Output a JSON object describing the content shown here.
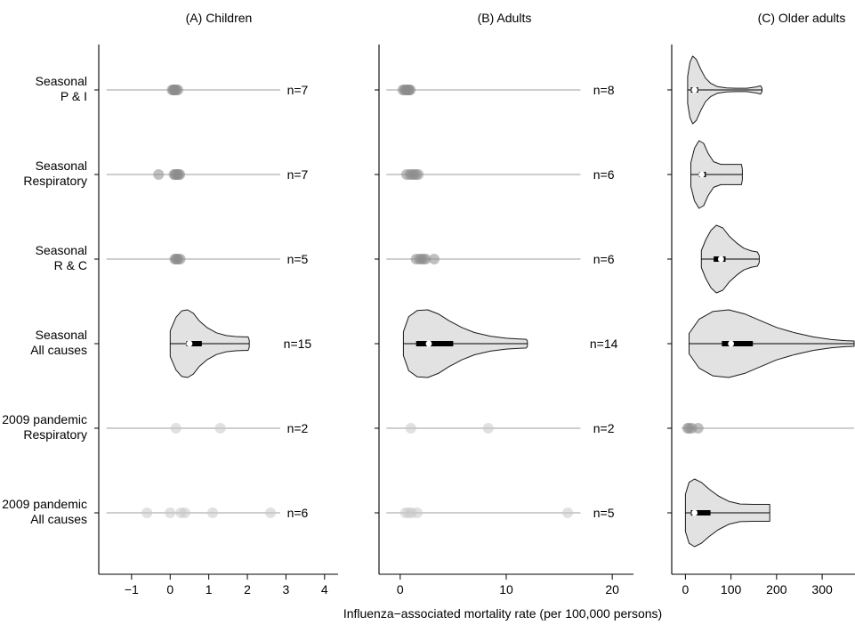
{
  "chart_data": {
    "type": "violin",
    "xlabel": "Influenza−associated mortality rate (per 100,000 persons)",
    "rows": [
      {
        "key": "sp",
        "label": [
          "Seasonal",
          "P & I"
        ]
      },
      {
        "key": "sr",
        "label": [
          "Seasonal",
          "Respiratory"
        ]
      },
      {
        "key": "src",
        "label": [
          "Seasonal",
          "R & C"
        ]
      },
      {
        "key": "sa",
        "label": [
          "Seasonal",
          "All causes"
        ]
      },
      {
        "key": "pr",
        "label": [
          "2009 pandemic",
          "Respiratory"
        ]
      },
      {
        "key": "pa",
        "label": [
          "2009 pandemic",
          "All causes"
        ]
      }
    ],
    "panels": [
      {
        "title": "(A) Children",
        "xlim": [
          -1.85,
          4.35
        ],
        "ticks": [
          -1,
          0,
          1,
          2,
          3,
          4
        ],
        "tick_labels": [
          "−1",
          "0",
          "1",
          "2",
          "3",
          "4"
        ],
        "line_range": [
          -1.65,
          2.85
        ],
        "n_pos": 3.3,
        "rows": [
          {
            "kind": "points",
            "n": "n=7",
            "points": [
              0.05,
              0.08,
              0.1,
              0.12,
              0.14,
              0.16,
              0.2
            ],
            "shade": "dark"
          },
          {
            "kind": "points",
            "n": "n=7",
            "points": [
              -0.3,
              0.1,
              0.13,
              0.16,
              0.19,
              0.22,
              0.25
            ],
            "shade": "dark"
          },
          {
            "kind": "points",
            "n": "n=5",
            "points": [
              0.12,
              0.15,
              0.18,
              0.21,
              0.26
            ],
            "shade": "dark"
          },
          {
            "kind": "violin",
            "n": "n=15",
            "min": 0,
            "max": 2.05,
            "q1": 0.42,
            "q3": 0.82,
            "median": 0.5,
            "profile": [
              [
                0,
                0
              ],
              [
                0,
                0.38
              ],
              [
                0.15,
                0.78
              ],
              [
                0.3,
                0.97
              ],
              [
                0.45,
                1.0
              ],
              [
                0.6,
                0.9
              ],
              [
                0.75,
                0.68
              ],
              [
                0.95,
                0.48
              ],
              [
                1.2,
                0.32
              ],
              [
                1.45,
                0.24
              ],
              [
                1.7,
                0.21
              ],
              [
                1.9,
                0.2
              ],
              [
                2.02,
                0.2
              ],
              [
                2.05,
                0.1
              ],
              [
                2.05,
                0
              ]
            ]
          },
          {
            "kind": "points",
            "n": "n=2",
            "points": [
              0.15,
              1.3
            ],
            "shade": "light"
          },
          {
            "kind": "points",
            "n": "n=6",
            "points": [
              -0.6,
              0.0,
              0.28,
              0.38,
              1.1,
              2.6
            ],
            "shade": "light"
          }
        ]
      },
      {
        "title": "(B) Adults",
        "xlim": [
          -2.0,
          22.0
        ],
        "ticks": [
          0,
          10,
          20
        ],
        "tick_labels": [
          "0",
          "10",
          "20"
        ],
        "line_range": [
          -1.3,
          17.0
        ],
        "n_pos": 19.2,
        "rows": [
          {
            "kind": "points",
            "n": "n=8",
            "points": [
              0.25,
              0.4,
              0.5,
              0.6,
              0.7,
              0.8,
              0.85,
              0.95
            ],
            "shade": "dark"
          },
          {
            "kind": "points",
            "n": "n=6",
            "points": [
              0.6,
              0.9,
              1.1,
              1.3,
              1.5,
              1.7
            ],
            "shade": "dark"
          },
          {
            "kind": "points",
            "n": "n=6",
            "points": [
              1.5,
              1.8,
              2.0,
              2.2,
              2.4,
              3.2
            ],
            "shade": "dark"
          },
          {
            "kind": "violin",
            "n": "n=14",
            "min": 0.3,
            "max": 12.0,
            "q1": 1.5,
            "q3": 5.0,
            "median": 2.7,
            "profile": [
              [
                0.3,
                0
              ],
              [
                0.3,
                0.35
              ],
              [
                0.8,
                0.8
              ],
              [
                1.6,
                0.98
              ],
              [
                2.6,
                1.0
              ],
              [
                3.6,
                0.88
              ],
              [
                4.6,
                0.68
              ],
              [
                5.8,
                0.48
              ],
              [
                7.0,
                0.33
              ],
              [
                8.5,
                0.22
              ],
              [
                10.0,
                0.16
              ],
              [
                11.2,
                0.14
              ],
              [
                11.9,
                0.13
              ],
              [
                12.0,
                0.07
              ],
              [
                12.0,
                0
              ]
            ]
          },
          {
            "kind": "points",
            "n": "n=2",
            "points": [
              1.0,
              8.3
            ],
            "shade": "light"
          },
          {
            "kind": "points",
            "n": "n=5",
            "points": [
              0.5,
              0.8,
              1.1,
              1.6,
              15.8
            ],
            "shade": "light"
          }
        ]
      },
      {
        "title": "(C) Older adults",
        "xlim": [
          -30,
          372
        ],
        "ticks": [
          0,
          100,
          200,
          300
        ],
        "tick_labels": [
          "0",
          "100",
          "200",
          "300"
        ],
        "line_range": [
          -8,
          372
        ],
        "n_pos": null,
        "rows": [
          {
            "kind": "violin",
            "n": "",
            "min": 5,
            "max": 168,
            "q1": 12,
            "q3": 28,
            "median": 20,
            "profile": [
              [
                5,
                0
              ],
              [
                5,
                0.4
              ],
              [
                10,
                0.82
              ],
              [
                16,
                1.0
              ],
              [
                24,
                0.9
              ],
              [
                34,
                0.6
              ],
              [
                44,
                0.35
              ],
              [
                55,
                0.2
              ],
              [
                70,
                0.1
              ],
              [
                90,
                0.06
              ],
              [
                110,
                0.05
              ],
              [
                135,
                0.05
              ],
              [
                155,
                0.09
              ],
              [
                165,
                0.12
              ],
              [
                168,
                0.05
              ],
              [
                168,
                0
              ]
            ]
          },
          {
            "kind": "violin",
            "n": "",
            "min": 12,
            "max": 125,
            "q1": 30,
            "q3": 45,
            "median": 36,
            "profile": [
              [
                12,
                0
              ],
              [
                12,
                0.35
              ],
              [
                20,
                0.78
              ],
              [
                30,
                1.0
              ],
              [
                40,
                0.92
              ],
              [
                50,
                0.62
              ],
              [
                62,
                0.38
              ],
              [
                78,
                0.3
              ],
              [
                95,
                0.3
              ],
              [
                112,
                0.3
              ],
              [
                123,
                0.3
              ],
              [
                125,
                0.15
              ],
              [
                125,
                0
              ]
            ]
          },
          {
            "kind": "violin",
            "n": "",
            "min": 35,
            "max": 162,
            "q1": 62,
            "q3": 88,
            "median": 78,
            "profile": [
              [
                35,
                0
              ],
              [
                35,
                0.25
              ],
              [
                45,
                0.58
              ],
              [
                56,
                0.85
              ],
              [
                68,
                1.0
              ],
              [
                82,
                0.92
              ],
              [
                96,
                0.68
              ],
              [
                112,
                0.48
              ],
              [
                128,
                0.32
              ],
              [
                145,
                0.24
              ],
              [
                158,
                0.21
              ],
              [
                162,
                0.1
              ],
              [
                162,
                0
              ]
            ]
          },
          {
            "kind": "violin",
            "n": "",
            "min": 8,
            "max": 372,
            "q1": 80,
            "q3": 148,
            "median": 100,
            "profile": [
              [
                8,
                0
              ],
              [
                8,
                0.3
              ],
              [
                30,
                0.72
              ],
              [
                60,
                0.95
              ],
              [
                95,
                1.0
              ],
              [
                130,
                0.88
              ],
              [
                165,
                0.68
              ],
              [
                200,
                0.48
              ],
              [
                240,
                0.32
              ],
              [
                280,
                0.2
              ],
              [
                320,
                0.12
              ],
              [
                350,
                0.09
              ],
              [
                372,
                0.08
              ]
            ]
          },
          {
            "kind": "points",
            "n": "",
            "points": [
              5,
              8,
              14,
              28
            ],
            "shade": "dark"
          },
          {
            "kind": "violin",
            "n": "",
            "min": 0,
            "max": 185,
            "q1": 12,
            "q3": 55,
            "median": 20,
            "profile": [
              [
                0,
                0
              ],
              [
                0,
                0.55
              ],
              [
                8,
                0.9
              ],
              [
                20,
                1.0
              ],
              [
                35,
                0.9
              ],
              [
                52,
                0.7
              ],
              [
                72,
                0.5
              ],
              [
                95,
                0.34
              ],
              [
                120,
                0.26
              ],
              [
                150,
                0.25
              ],
              [
                175,
                0.25
              ],
              [
                185,
                0.25
              ],
              [
                185,
                0
              ]
            ]
          }
        ]
      }
    ]
  }
}
